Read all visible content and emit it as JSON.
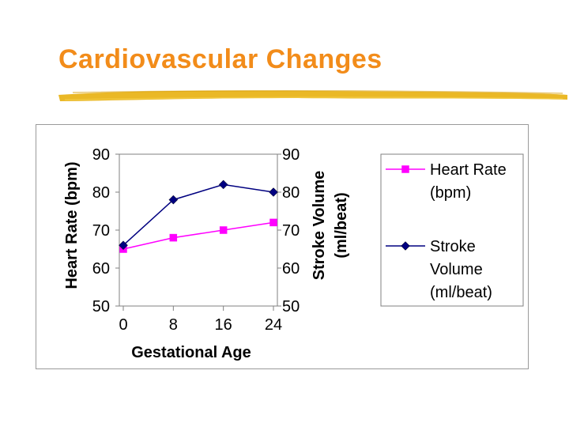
{
  "slide": {
    "title": "Cardiovascular Changes"
  },
  "colors": {
    "title": "#f28c1a",
    "underline": "#e9b41a",
    "heart_rate": "#ff00ff",
    "stroke_volume": "#000080"
  },
  "chart_data": {
    "type": "line",
    "title": "",
    "xlabel": "Gestational Age",
    "ylabel": "Heart Rate (bpm)",
    "y2label_line1": "Stroke Volume",
    "y2label_line2": "(ml/beat)",
    "x": [
      0,
      8,
      16,
      24
    ],
    "x_tick_labels": [
      "0",
      "8",
      "16",
      "24"
    ],
    "ylim": [
      50,
      90
    ],
    "y_ticks": [
      "50",
      "60",
      "70",
      "80",
      "90"
    ],
    "y2lim": [
      50,
      90
    ],
    "y2_ticks": [
      "50",
      "60",
      "70",
      "80",
      "90"
    ],
    "legend_position": "right",
    "series": [
      {
        "name": "Heart Rate (bpm)",
        "legend_lines": [
          "Heart Rate",
          "(bpm)"
        ],
        "axis": "left",
        "marker": "square",
        "values": [
          65,
          68,
          70,
          72
        ]
      },
      {
        "name": "Stroke Volume (ml/beat)",
        "legend_lines": [
          "Stroke",
          "Volume",
          "(ml/beat)"
        ],
        "axis": "right",
        "marker": "diamond",
        "values": [
          66,
          78,
          82,
          80
        ]
      }
    ]
  }
}
